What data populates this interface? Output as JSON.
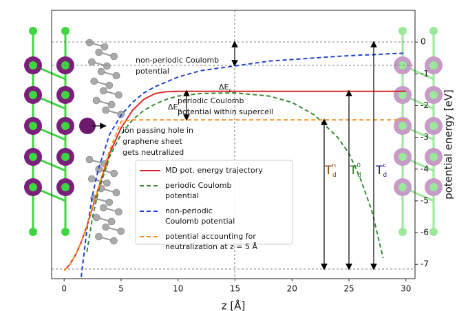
{
  "chart_data": {
    "type": "line",
    "x_label": "z [Å]",
    "y_label": "potential energy [eV]",
    "x": [
      0,
      0.5,
      1,
      1.5,
      2,
      2.5,
      3,
      4,
      5,
      6,
      7,
      8,
      9,
      10,
      12,
      15,
      18,
      20,
      22,
      24,
      25,
      26,
      27,
      28,
      29,
      30
    ],
    "series": [
      {
        "name": "MD pot. energy trajectory",
        "color": "#d62728",
        "dash": false,
        "values": [
          -7.2,
          -7.0,
          -6.7,
          -6.3,
          -5.8,
          -5.2,
          -4.6,
          -3.5,
          -2.7,
          -2.15,
          -1.8,
          -1.62,
          -1.56,
          -1.55,
          -1.55,
          -1.55,
          -1.55,
          -1.55,
          -1.55,
          -1.55,
          -1.55,
          -1.55,
          -1.55,
          -1.55,
          -1.55,
          -1.55
        ]
      },
      {
        "name": "periodic Coulomb\npotential",
        "color": "#2e8b2e",
        "dash": true,
        "values": [
          null,
          null,
          null,
          null,
          -6.6,
          -5.5,
          -4.7,
          -3.6,
          -2.9,
          -2.45,
          -2.15,
          -1.95,
          -1.8,
          -1.7,
          -1.62,
          -1.6,
          -1.7,
          -1.9,
          -2.3,
          -3.0,
          -3.5,
          -4.3,
          -5.3,
          -6.8,
          null,
          null
        ]
      },
      {
        "name": "non-periodic\nCoulomb potential",
        "color": "#1f3fd0",
        "dash": true,
        "values": [
          null,
          null,
          null,
          -7.4,
          -5.9,
          -4.8,
          -4.0,
          -2.9,
          -2.3,
          -1.9,
          -1.6,
          -1.4,
          -1.25,
          -1.1,
          -0.9,
          -0.75,
          -0.6,
          -0.55,
          -0.5,
          -0.45,
          -0.43,
          -0.41,
          -0.4,
          -0.38,
          -0.36,
          -0.35
        ]
      },
      {
        "name": "potential accounting for\nneutralization at z = 5 Å",
        "color": "#ff8c1a",
        "dash": true,
        "values": [
          -7.2,
          -7.0,
          -6.7,
          -6.3,
          -5.8,
          -5.2,
          -4.6,
          -3.4,
          -2.5,
          -2.45,
          -2.45,
          -2.45,
          -2.45,
          -2.45,
          -2.45,
          -2.45,
          -2.45,
          -2.45,
          -2.45,
          -2.45,
          -2.45,
          -2.45,
          -2.45,
          -2.45,
          -2.45,
          -2.45
        ]
      }
    ],
    "xlim": [
      -1.1,
      30.8
    ],
    "ylim": [
      -7.45,
      1.0
    ],
    "xticks": [
      0,
      5,
      10,
      15,
      20,
      25,
      30
    ],
    "yticks": [
      0,
      -1,
      -2,
      -3,
      -4,
      -5,
      -6,
      -7
    ],
    "annotations": [
      {
        "lines": [
          "non-periodic Coulomb",
          "potential"
        ]
      },
      {
        "text": "ΔE",
        "sub": "c"
      },
      {
        "lines": [
          "periodic Coulomb",
          "potential within supercell"
        ]
      },
      {
        "text": "ΔE",
        "sub": "n"
      },
      {
        "lines": [
          "ion passing hole in",
          "graphene sheet",
          "gets neutralized"
        ]
      },
      {
        "text": "T",
        "sub": "d",
        "sup": "n"
      },
      {
        "text": "T",
        "sub": "d",
        "sup": "0"
      },
      {
        "text": "T",
        "sub": "d",
        "sup": "c"
      }
    ]
  }
}
